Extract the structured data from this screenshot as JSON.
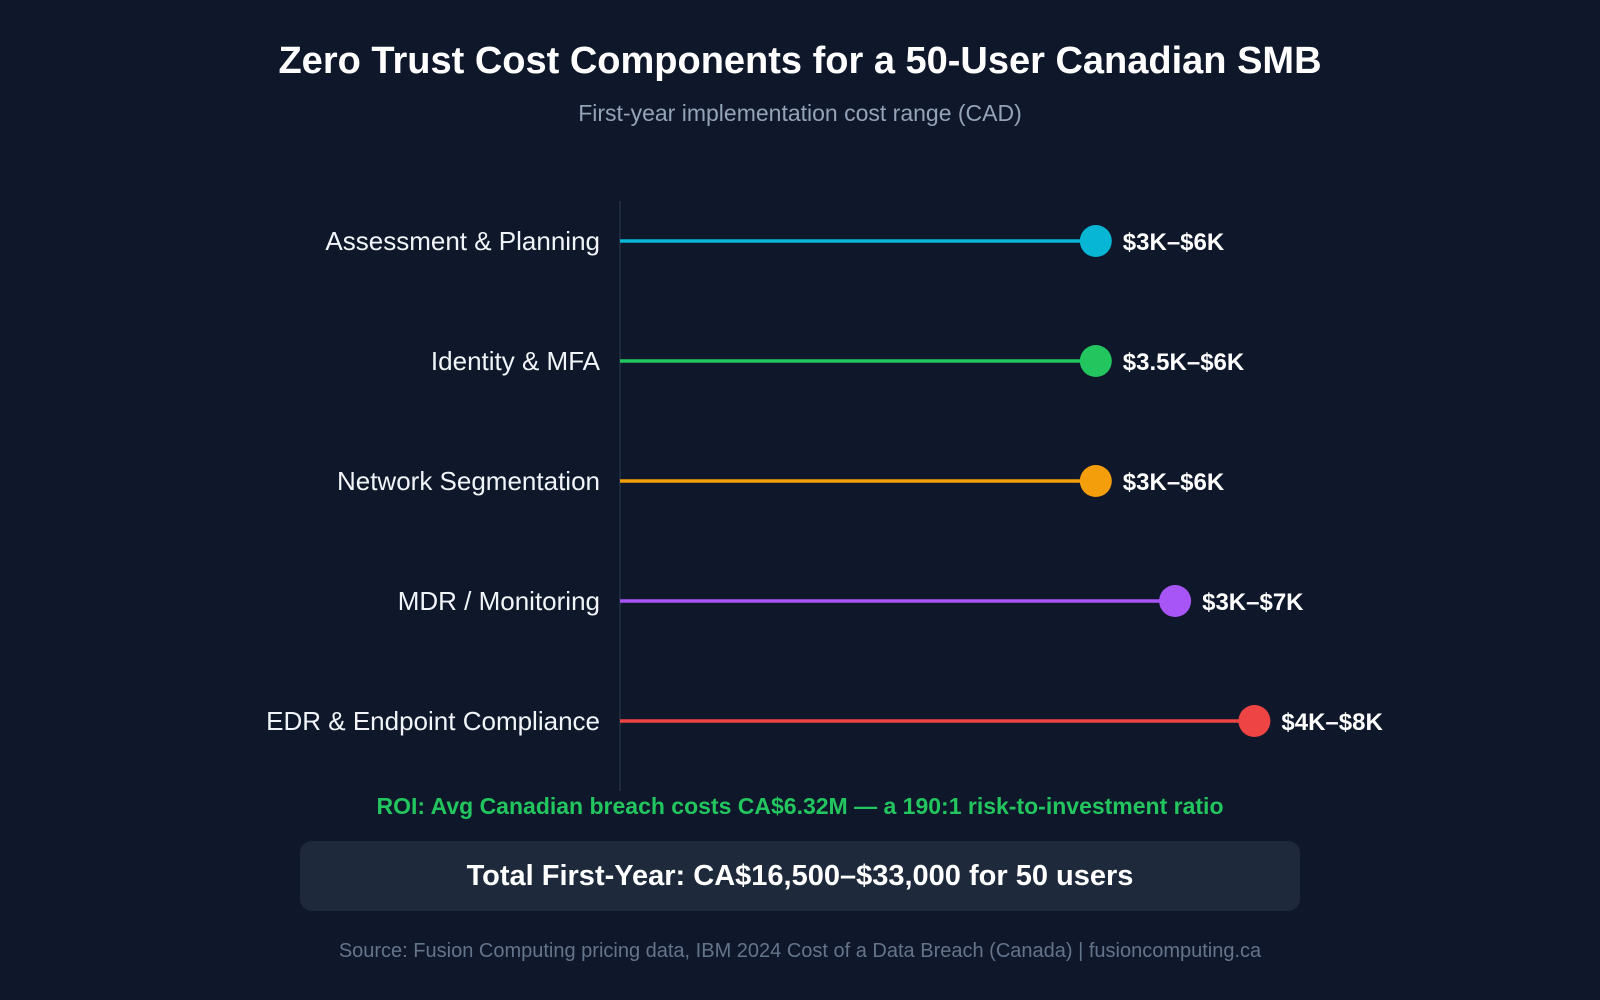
{
  "chart_data": {
    "type": "lollipop",
    "title": "Zero Trust Cost Components for a 50-User Canadian SMB",
    "subtitle": "First-year implementation cost range (CAD)",
    "categories": [
      "Assessment & Planning",
      "Identity & MFA",
      "Network Segmentation",
      "MDR / Monitoring",
      "EDR & Endpoint Compliance"
    ],
    "values_max_k": [
      6,
      6,
      6,
      7,
      8
    ],
    "data_labels": [
      "$3K–$6K",
      "$3.5K–$6K",
      "$3K–$6K",
      "$3K–$7K",
      "$4K–$8K"
    ],
    "colors": [
      "#06b6d4",
      "#22c55e",
      "#f59e0b",
      "#a855f7",
      "#ef4444"
    ],
    "xlim": [
      0,
      8.5
    ],
    "grid": false
  },
  "roi_note": "ROI: Avg Canadian breach costs CA$6.32M — a 190:1 risk-to-investment ratio",
  "roi_color": "#22c55e",
  "total": "Total First-Year: CA$16,500–$33,000 for 50 users",
  "source": "Source: Fusion Computing pricing data, IBM 2024 Cost of a Data Breach (Canada) | fusioncomputing.ca"
}
